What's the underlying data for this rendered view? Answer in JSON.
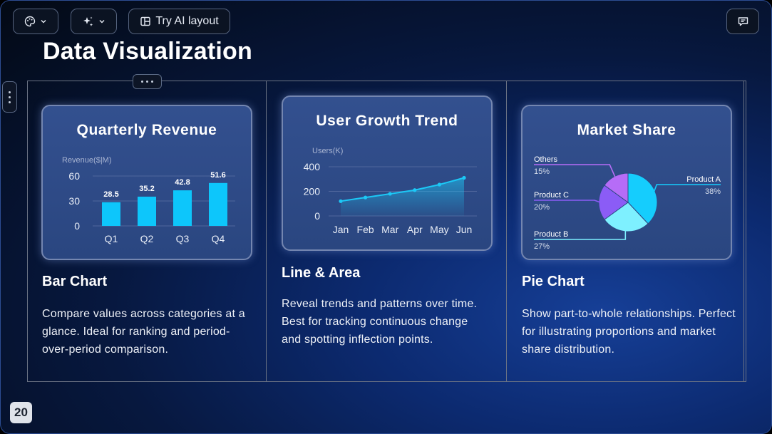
{
  "toolbar": {
    "theme_icon": "palette-icon",
    "ai_icon": "sparkle-icon",
    "layout_icon": "layout-icon",
    "layout_label": "Try AI layout",
    "chat_icon": "chat-icon"
  },
  "slide": {
    "title": "Data Visualization",
    "page_number": "20"
  },
  "columns": [
    {
      "heading": "Bar Chart",
      "description": "Compare values across categories at a glance. Ideal for ranking and period-over-period comparison."
    },
    {
      "heading": "Line & Area",
      "description": "Reveal trends and patterns over time. Best for tracking continuous change and spotting inflection points."
    },
    {
      "heading": "Pie Chart",
      "description": "Show part-to-whole relationships. Perfect for illustrating proportions and market share distribution."
    }
  ],
  "chart_data": [
    {
      "type": "bar",
      "title": "Quarterly Revenue",
      "ylabel": "Revenue($|M)",
      "categories": [
        "Q1",
        "Q2",
        "Q3",
        "Q4"
      ],
      "values": [
        28.5,
        35.2,
        42.8,
        51.6
      ],
      "value_labels": [
        "28.5",
        "35.2",
        "42.8",
        "51.6"
      ],
      "yticks": [
        "0",
        "30",
        "60"
      ],
      "ylim": [
        0,
        65
      ],
      "color": "#0dc6fb"
    },
    {
      "type": "area",
      "title": "User Growth Trend",
      "ylabel": "Users(K)",
      "categories": [
        "Jan",
        "Feb",
        "Mar",
        "Apr",
        "May",
        "Jun"
      ],
      "values": [
        120,
        150,
        180,
        210,
        255,
        310
      ],
      "yticks": [
        "0",
        "200",
        "400"
      ],
      "ylim": [
        0,
        400
      ],
      "color": "#1cc8f6"
    },
    {
      "type": "pie",
      "title": "Market Share",
      "slices": [
        {
          "name": "Product A",
          "percent": "38%",
          "value": 38,
          "color": "#15cdfd"
        },
        {
          "name": "Product B",
          "percent": "27%",
          "value": 27,
          "color": "#7ef0ff"
        },
        {
          "name": "Product C",
          "percent": "20%",
          "value": 20,
          "color": "#8b5cf6"
        },
        {
          "name": "Others",
          "percent": "15%",
          "value": 15,
          "color": "#b66cf7"
        }
      ]
    }
  ]
}
